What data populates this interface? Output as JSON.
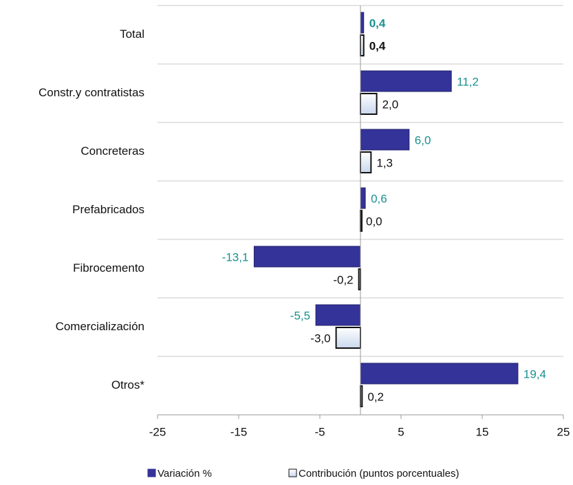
{
  "chart_data": {
    "type": "bar",
    "orientation": "horizontal",
    "categories": [
      "Total",
      "Constr.y contratistas",
      "Concreteras",
      "Prefabricados",
      "Fibrocemento",
      "Comercialización",
      "Otros*"
    ],
    "series": [
      {
        "name": "Variación %",
        "color": "#333399",
        "label_color": "#1a9090",
        "values": [
          0.4,
          11.2,
          6.0,
          0.6,
          -13.1,
          -5.5,
          19.4
        ],
        "value_labels": [
          "0,4",
          "11,2",
          "6,0",
          "0,6",
          "-13,1",
          "-5,5",
          "19,4"
        ]
      },
      {
        "name": "Contribución (puntos porcentuales)",
        "color": "#c9d8ee",
        "label_color": "#111111",
        "values": [
          0.4,
          2.0,
          1.3,
          0.0,
          -0.2,
          -3.0,
          0.2
        ],
        "value_labels": [
          "0,4",
          "2,0",
          "1,3",
          "0,0",
          "-0,2",
          "-3,0",
          "0,2"
        ]
      }
    ],
    "xlim": [
      -25,
      25
    ],
    "xticks": [
      -25,
      -15,
      -5,
      5,
      15,
      25
    ]
  }
}
